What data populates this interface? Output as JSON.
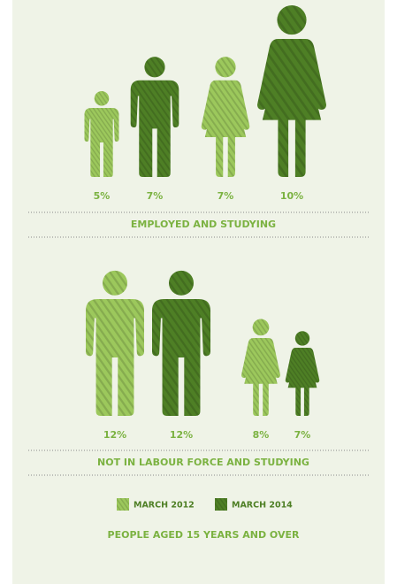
{
  "chart_data": {
    "type": "pictogram",
    "panels": [
      {
        "title": "EMPLOYED AND STUDYING"
      },
      {
        "title": "NOT IN LABOUR FORCE AND STUDYING"
      }
    ],
    "series": [
      {
        "name": "MARCH 2012",
        "color": "#9cc85c",
        "values": [
          5,
          7,
          12,
          8
        ],
        "value_labels": [
          "5%",
          "7%",
          "12%",
          "8%"
        ]
      },
      {
        "name": "MARCH 2014",
        "color": "#4e7f25",
        "values": [
          7,
          10,
          12,
          7
        ],
        "value_labels": [
          "7%",
          "10%",
          "12%",
          "7%"
        ]
      }
    ],
    "footnote": "PEOPLE AGED 15 YEARS AND OVER"
  }
}
